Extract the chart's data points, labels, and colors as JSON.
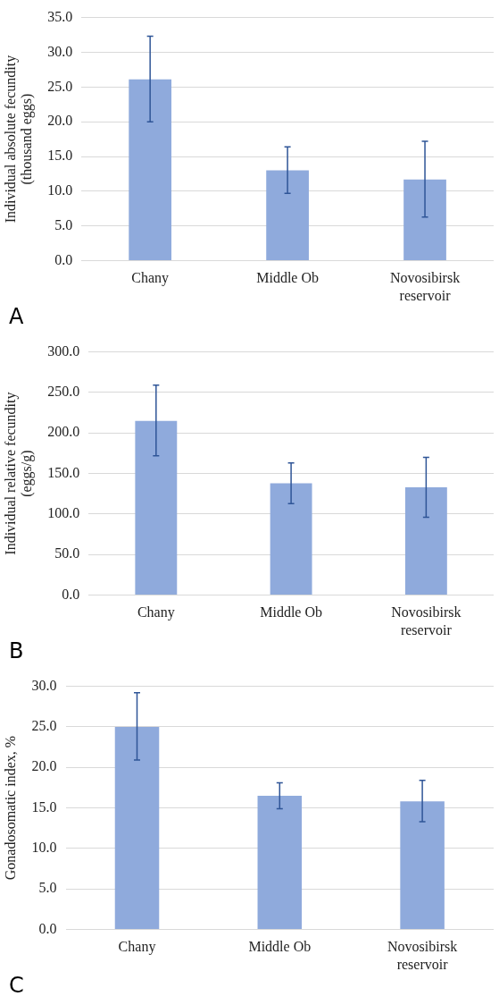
{
  "chart_data": [
    {
      "type": "bar",
      "ylabel": "Individual absolute fecundity (thousand eggs)",
      "categories": [
        "Chany",
        "Middle Ob",
        "Novosibirsk reservoir"
      ],
      "values": [
        26.1,
        13.0,
        11.7
      ],
      "errors": [
        [
          20.0,
          32.3
        ],
        [
          9.7,
          16.4
        ],
        [
          6.3,
          17.2
        ]
      ],
      "color": "#8faadc",
      "ylim": [
        0,
        35
      ],
      "yticks": [
        {
          "value": 0,
          "label": "0.0"
        },
        {
          "value": 5,
          "label": "5.0"
        },
        {
          "value": 10,
          "label": "10.0"
        },
        {
          "value": 15,
          "label": "15.0"
        },
        {
          "value": 20,
          "label": "20.0"
        },
        {
          "value": 25,
          "label": "25.0"
        },
        {
          "value": 30,
          "label": "30.0"
        },
        {
          "value": 35,
          "label": "35.0"
        }
      ],
      "grid": "y",
      "annotations": [
        "A"
      ]
    },
    {
      "type": "bar",
      "ylabel": "Individual relative fecundity (eggs/g)",
      "categories": [
        "Chany",
        "Middle Ob",
        "Novosibirsk reservoir"
      ],
      "values": [
        215,
        138,
        133
      ],
      "errors": [
        [
          172,
          259
        ],
        [
          113,
          163
        ],
        [
          96,
          170
        ]
      ],
      "color": "#8faadc",
      "ylim": [
        0,
        300
      ],
      "yticks": [
        {
          "value": 0,
          "label": "0.0"
        },
        {
          "value": 50,
          "label": "50.0"
        },
        {
          "value": 100,
          "label": "100.0"
        },
        {
          "value": 150,
          "label": "150.0"
        },
        {
          "value": 200,
          "label": "200.0"
        },
        {
          "value": 250,
          "label": "250.0"
        },
        {
          "value": 300,
          "label": "300.0"
        }
      ],
      "grid": "y",
      "annotations": [
        "B"
      ]
    },
    {
      "type": "bar",
      "ylabel": "Gonadosomatic index, %",
      "categories": [
        "Chany",
        "Middle Ob",
        "Novosibirsk reservoir"
      ],
      "values": [
        25.0,
        16.5,
        15.8
      ],
      "errors": [
        [
          20.9,
          29.2
        ],
        [
          14.9,
          18.1
        ],
        [
          13.3,
          18.4
        ]
      ],
      "color": "#8faadc",
      "ylim": [
        0,
        30
      ],
      "yticks": [
        {
          "value": 0,
          "label": "0.0"
        },
        {
          "value": 5,
          "label": "5.0"
        },
        {
          "value": 10,
          "label": "10.0"
        },
        {
          "value": 15,
          "label": "15.0"
        },
        {
          "value": 20,
          "label": "20.0"
        },
        {
          "value": 25,
          "label": "25.0"
        },
        {
          "value": 30,
          "label": "30.0"
        }
      ],
      "grid": "y",
      "annotations": [
        "C"
      ]
    }
  ]
}
